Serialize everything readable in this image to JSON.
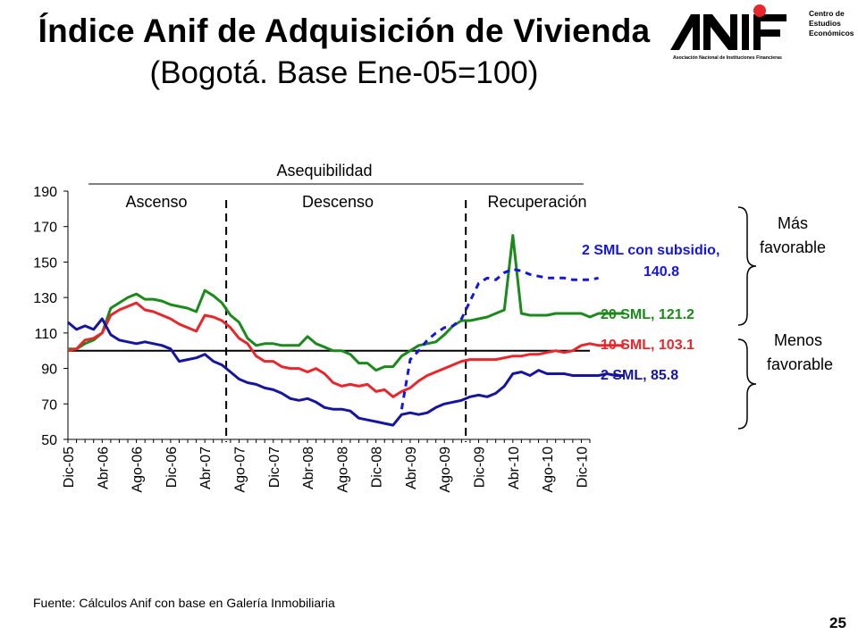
{
  "slide": {
    "title": "Índice Anif de Adquisición de Vivienda",
    "subtitle": "(Bogotá. Base Ene-05=100)",
    "source": "Fuente: Cálculos Anif con base en Galería Inmobiliaria",
    "page_number": "25"
  },
  "logo": {
    "wordmark": "ANIF",
    "caption": "Asociación Nacional de Instituciones Financieras",
    "center_lines": [
      "Centro de",
      "Estudios",
      "Económicos"
    ],
    "dot_color": "#e8262b"
  },
  "chart_data": {
    "type": "line",
    "ylim": [
      50,
      190
    ],
    "yticks": [
      50,
      70,
      90,
      110,
      130,
      150,
      170,
      190
    ],
    "x_tick_labels": [
      "Dic-05",
      "Abr-06",
      "Ago-06",
      "Dic-06",
      "Abr-07",
      "Ago-07",
      "Dic-07",
      "Abr-08",
      "Ago-08",
      "Dic-08",
      "Abr-09",
      "Ago-09",
      "Dic-09",
      "Abr-10",
      "Ago-10",
      "Dic-10"
    ],
    "x_tick_months": [
      0,
      4,
      8,
      12,
      16,
      20,
      24,
      28,
      32,
      36,
      40,
      44,
      48,
      52,
      56,
      60
    ],
    "reference_line": 100,
    "phase_dividers_month": [
      18.5,
      46.5
    ],
    "phases": {
      "overall": "Asequibilidad",
      "labels": [
        "Ascenso",
        "Descenso",
        "Recuperación"
      ]
    },
    "series": [
      {
        "name": "20 SML",
        "label": "20 SML, 121.2",
        "color": "#1a8a1a",
        "dashed": false,
        "values": [
          101,
          101,
          104,
          106,
          110,
          124,
          127,
          130,
          132,
          129,
          129,
          128,
          126,
          125,
          124,
          122,
          134,
          131,
          127,
          120,
          116,
          107,
          103,
          104,
          104,
          103,
          103,
          103,
          108,
          104,
          102,
          100,
          100,
          98,
          93,
          93,
          89,
          91,
          91,
          97,
          100,
          103,
          104,
          105,
          109,
          114,
          117,
          117,
          118,
          119,
          121,
          123,
          165,
          121,
          120,
          120,
          120,
          121,
          121,
          121,
          121,
          119,
          121,
          121,
          121,
          121
        ]
      },
      {
        "name": "10 SML",
        "label": "10 SML, 103.1",
        "color": "#e8262b",
        "dashed": false,
        "values": [
          100,
          101,
          106,
          107,
          110,
          120,
          123,
          125,
          127,
          123,
          122,
          120,
          118,
          115,
          113,
          111,
          120,
          119,
          117,
          113,
          107,
          104,
          97,
          94,
          94,
          91,
          90,
          90,
          88,
          90,
          87,
          82,
          80,
          81,
          80,
          81,
          77,
          78,
          74,
          77,
          79,
          83,
          86,
          88,
          90,
          92,
          94,
          95,
          95,
          95,
          95,
          96,
          97,
          97,
          98,
          98,
          99,
          100,
          99,
          100,
          103,
          104,
          103,
          103,
          103,
          103
        ]
      },
      {
        "name": "2 SML",
        "label": "2 SML, 85.8",
        "color": "#1515a0",
        "dashed": false,
        "values": [
          116,
          112,
          114,
          112,
          118,
          109,
          106,
          105,
          104,
          105,
          104,
          103,
          101,
          94,
          95,
          96,
          98,
          94,
          92,
          88,
          84,
          82,
          81,
          79,
          78,
          76,
          73,
          72,
          73,
          71,
          68,
          67,
          67,
          66,
          62,
          61,
          60,
          59,
          58,
          64,
          65,
          64,
          65,
          68,
          70,
          71,
          72,
          74,
          75,
          74,
          76,
          80,
          87,
          88,
          86,
          89,
          87,
          87,
          87,
          86,
          86,
          86,
          86,
          87,
          86,
          86
        ]
      },
      {
        "name": "2 SML con subsidio",
        "label_lines": [
          "2 SML con subsidio,",
          "140.8"
        ],
        "color": "#1515e0",
        "dashed": true,
        "start_month": 39,
        "values": [
          67,
          95,
          100,
          106,
          110,
          113,
          114,
          118,
          128,
          138,
          141,
          140,
          144,
          146,
          145,
          143,
          142,
          141,
          141,
          141,
          140,
          140,
          140,
          141
        ]
      }
    ]
  },
  "brackets": {
    "upper_label_lines": [
      "Más",
      "favorable"
    ],
    "lower_label_lines": [
      "Menos",
      "favorable"
    ]
  }
}
